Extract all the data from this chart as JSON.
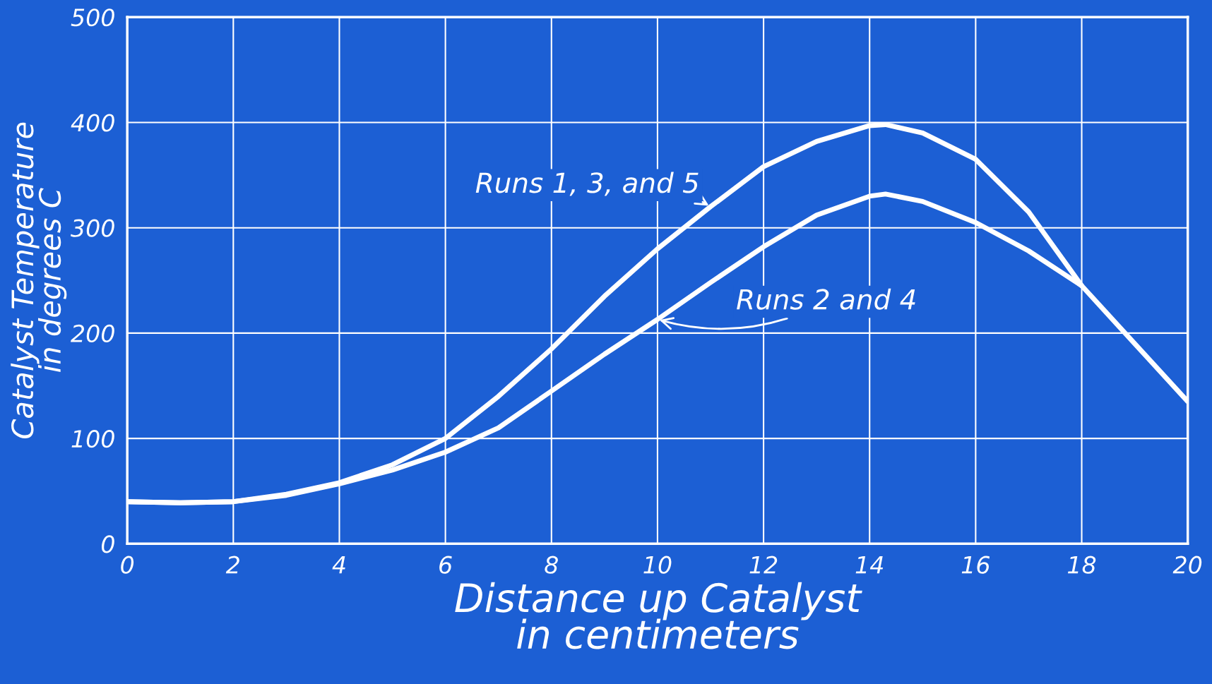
{
  "chart_data": {
    "type": "line",
    "xlabel": "Distance up Catalyst\nin centimeters",
    "ylabel": "Catalyst Temperature\nin degrees C",
    "series": [
      {
        "name": "Runs 1, 3, and 5",
        "color": "#ffffff",
        "x": [
          0,
          1,
          2,
          3,
          4,
          5,
          6,
          7,
          8,
          9,
          10,
          11,
          12,
          13,
          14,
          14.3,
          15,
          16,
          17,
          18,
          19,
          20
        ],
        "values": [
          40,
          39,
          40,
          47,
          58,
          75,
          100,
          140,
          185,
          235,
          280,
          320,
          358,
          382,
          397,
          398,
          390,
          365,
          315,
          245,
          190,
          135
        ]
      },
      {
        "name": "Runs 2 and 4",
        "color": "#ffffff",
        "x": [
          0,
          1,
          2,
          3,
          4,
          5,
          6,
          7,
          8,
          9,
          10,
          11,
          12,
          13,
          14,
          14.3,
          15,
          16,
          17,
          18
        ],
        "values": [
          40,
          39,
          40,
          46,
          57,
          70,
          87,
          110,
          145,
          180,
          213,
          248,
          282,
          312,
          330,
          332,
          325,
          305,
          278,
          245
        ]
      }
    ],
    "xlim": [
      0,
      20
    ],
    "xticks": [
      0,
      2,
      4,
      6,
      8,
      10,
      12,
      14,
      16,
      18,
      20
    ],
    "ylim": [
      0,
      500
    ],
    "yticks": [
      0,
      100,
      200,
      300,
      400,
      500
    ],
    "grid": true,
    "line_style": "solid",
    "marker": "none"
  }
}
